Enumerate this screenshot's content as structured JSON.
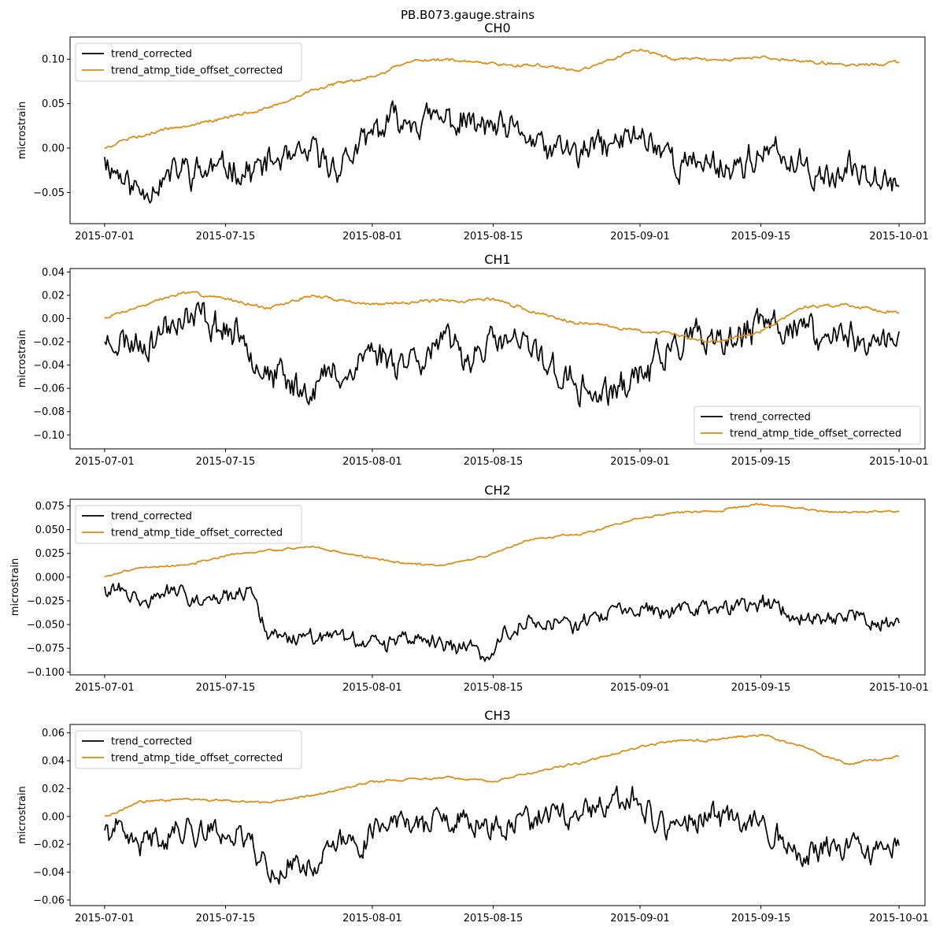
{
  "figure": {
    "title": "PB.B073.gauge.strains"
  },
  "colors": {
    "trend_corrected": "#000000",
    "trend_atmp_tide_offset_corrected": "#e08a0b"
  },
  "chart_data": [
    {
      "type": "line",
      "title": "CH0",
      "ylabel": "microstrain",
      "xlim": [
        "2015-06-27",
        "2015-10-04"
      ],
      "ylim": [
        -0.085,
        0.125
      ],
      "yticks": [
        -0.05,
        0.0,
        0.05,
        0.1
      ],
      "ytick_labels": [
        "−0.05",
        "0.00",
        "0.05",
        "0.10"
      ],
      "xticks": [
        "2015-07-01",
        "2015-07-15",
        "2015-08-01",
        "2015-08-15",
        "2015-09-01",
        "2015-09-15",
        "2015-10-01"
      ],
      "legend": "upper-left",
      "series": [
        {
          "name": "trend_corrected",
          "color": "#000000",
          "seed": 11,
          "amp": 0.024,
          "x": [
            "2015-07-01",
            "2015-07-05",
            "2015-07-10",
            "2015-07-15",
            "2015-07-20",
            "2015-07-25",
            "2015-07-28",
            "2015-08-01",
            "2015-08-06",
            "2015-08-10",
            "2015-08-15",
            "2015-08-20",
            "2015-08-25",
            "2015-09-01",
            "2015-09-05",
            "2015-09-10",
            "2015-09-15",
            "2015-09-20",
            "2015-09-25",
            "2015-10-01"
          ],
          "y": [
            -0.01,
            -0.045,
            -0.02,
            -0.02,
            -0.02,
            -0.01,
            -0.02,
            0.01,
            0.045,
            0.03,
            0.015,
            0.0,
            -0.01,
            0.015,
            -0.015,
            -0.02,
            -0.01,
            -0.02,
            -0.025,
            -0.03
          ]
        },
        {
          "name": "trend_atmp_tide_offset_corrected",
          "color": "#e08a0b",
          "seed": 5,
          "amp": 0.0025,
          "x": [
            "2015-07-01",
            "2015-07-05",
            "2015-07-10",
            "2015-07-15",
            "2015-07-20",
            "2015-07-25",
            "2015-08-01",
            "2015-08-06",
            "2015-08-10",
            "2015-08-15",
            "2015-08-20",
            "2015-08-25",
            "2015-09-01",
            "2015-09-05",
            "2015-09-10",
            "2015-09-15",
            "2015-09-20",
            "2015-09-25",
            "2015-10-01"
          ],
          "y": [
            0.0,
            0.015,
            0.025,
            0.035,
            0.045,
            0.065,
            0.08,
            0.1,
            0.098,
            0.095,
            0.093,
            0.088,
            0.112,
            0.1,
            0.098,
            0.102,
            0.097,
            0.093,
            0.097
          ]
        }
      ]
    },
    {
      "type": "line",
      "title": "CH1",
      "ylabel": "microstrain",
      "xlim": [
        "2015-06-27",
        "2015-10-04"
      ],
      "ylim": [
        -0.112,
        0.043
      ],
      "yticks": [
        -0.1,
        -0.08,
        -0.06,
        -0.04,
        -0.02,
        0.0,
        0.02,
        0.04
      ],
      "ytick_labels": [
        "−0.10",
        "−0.08",
        "−0.06",
        "−0.04",
        "−0.02",
        "0.00",
        "0.02",
        "0.04"
      ],
      "xticks": [
        "2015-07-01",
        "2015-07-15",
        "2015-08-01",
        "2015-08-15",
        "2015-09-01",
        "2015-09-15",
        "2015-10-01"
      ],
      "legend": "lower-right",
      "series": [
        {
          "name": "trend_corrected",
          "color": "#000000",
          "seed": 23,
          "amp": 0.02,
          "x": [
            "2015-07-01",
            "2015-07-05",
            "2015-07-10",
            "2015-07-15",
            "2015-07-20",
            "2015-07-25",
            "2015-08-01",
            "2015-08-05",
            "2015-08-10",
            "2015-08-15",
            "2015-08-20",
            "2015-08-25",
            "2015-08-28",
            "2015-09-01",
            "2015-09-05",
            "2015-09-10",
            "2015-09-15",
            "2015-09-20",
            "2015-09-25",
            "2015-10-01"
          ],
          "y": [
            -0.02,
            -0.02,
            -0.005,
            -0.01,
            -0.04,
            -0.06,
            -0.03,
            -0.03,
            -0.025,
            -0.02,
            -0.03,
            -0.065,
            -0.07,
            -0.04,
            -0.02,
            -0.025,
            -0.01,
            -0.005,
            -0.02,
            -0.02
          ]
        },
        {
          "name": "trend_atmp_tide_offset_corrected",
          "color": "#e08a0b",
          "seed": 7,
          "amp": 0.002,
          "x": [
            "2015-07-01",
            "2015-07-05",
            "2015-07-10",
            "2015-07-15",
            "2015-07-20",
            "2015-07-25",
            "2015-08-01",
            "2015-08-05",
            "2015-08-10",
            "2015-08-15",
            "2015-08-20",
            "2015-08-25",
            "2015-09-01",
            "2015-09-05",
            "2015-09-10",
            "2015-09-15",
            "2015-09-20",
            "2015-09-25",
            "2015-10-01"
          ],
          "y": [
            0.0,
            0.01,
            0.022,
            0.018,
            0.008,
            0.02,
            0.012,
            0.015,
            0.015,
            0.017,
            0.005,
            -0.003,
            -0.01,
            -0.015,
            -0.02,
            -0.01,
            0.01,
            0.012,
            0.005
          ]
        }
      ]
    },
    {
      "type": "line",
      "title": "CH2",
      "ylabel": "microstrain",
      "xlim": [
        "2015-06-27",
        "2015-10-04"
      ],
      "ylim": [
        -0.103,
        0.082
      ],
      "yticks": [
        -0.1,
        -0.075,
        -0.05,
        -0.025,
        0.0,
        0.025,
        0.05,
        0.075
      ],
      "ytick_labels": [
        "−0.100",
        "−0.075",
        "−0.050",
        "−0.025",
        "0.000",
        "0.025",
        "0.050",
        "0.075"
      ],
      "xticks": [
        "2015-07-01",
        "2015-07-15",
        "2015-08-01",
        "2015-08-15",
        "2015-09-01",
        "2015-09-15",
        "2015-10-01"
      ],
      "legend": "upper-left",
      "series": [
        {
          "name": "trend_corrected",
          "color": "#000000",
          "seed": 31,
          "amp": 0.012,
          "x": [
            "2015-07-01",
            "2015-07-05",
            "2015-07-10",
            "2015-07-15",
            "2015-07-18",
            "2015-07-20",
            "2015-07-25",
            "2015-08-01",
            "2015-08-05",
            "2015-08-10",
            "2015-08-14",
            "2015-08-17",
            "2015-08-20",
            "2015-08-25",
            "2015-09-01",
            "2015-09-05",
            "2015-09-10",
            "2015-09-15",
            "2015-09-20",
            "2015-09-25",
            "2015-10-01"
          ],
          "y": [
            -0.01,
            -0.025,
            -0.02,
            -0.02,
            -0.02,
            -0.06,
            -0.06,
            -0.07,
            -0.065,
            -0.07,
            -0.08,
            -0.05,
            -0.045,
            -0.045,
            -0.03,
            -0.035,
            -0.035,
            -0.025,
            -0.04,
            -0.04,
            -0.045
          ]
        },
        {
          "name": "trend_atmp_tide_offset_corrected",
          "color": "#e08a0b",
          "seed": 3,
          "amp": 0.0015,
          "x": [
            "2015-07-01",
            "2015-07-05",
            "2015-07-10",
            "2015-07-15",
            "2015-07-20",
            "2015-07-25",
            "2015-08-01",
            "2015-08-05",
            "2015-08-10",
            "2015-08-15",
            "2015-08-20",
            "2015-08-25",
            "2015-09-01",
            "2015-09-05",
            "2015-09-10",
            "2015-09-15",
            "2015-09-20",
            "2015-09-25",
            "2015-10-01"
          ],
          "y": [
            0.0,
            0.01,
            0.012,
            0.022,
            0.028,
            0.032,
            0.02,
            0.014,
            0.013,
            0.025,
            0.042,
            0.045,
            0.062,
            0.068,
            0.07,
            0.077,
            0.072,
            0.068,
            0.07
          ]
        }
      ]
    },
    {
      "type": "line",
      "title": "CH3",
      "ylabel": "microstrain",
      "xlim": [
        "2015-06-27",
        "2015-10-04"
      ],
      "ylim": [
        -0.064,
        0.066
      ],
      "yticks": [
        -0.06,
        -0.04,
        -0.02,
        0.0,
        0.02,
        0.04,
        0.06
      ],
      "ytick_labels": [
        "−0.06",
        "−0.04",
        "−0.02",
        "0.00",
        "0.02",
        "0.04",
        "0.06"
      ],
      "xticks": [
        "2015-07-01",
        "2015-07-15",
        "2015-08-01",
        "2015-08-15",
        "2015-09-01",
        "2015-09-15",
        "2015-10-01"
      ],
      "legend": "upper-left",
      "series": [
        {
          "name": "trend_corrected",
          "color": "#000000",
          "seed": 41,
          "amp": 0.013,
          "x": [
            "2015-07-01",
            "2015-07-05",
            "2015-07-10",
            "2015-07-15",
            "2015-07-18",
            "2015-07-20",
            "2015-07-25",
            "2015-08-01",
            "2015-08-05",
            "2015-08-10",
            "2015-08-15",
            "2015-08-20",
            "2015-08-25",
            "2015-09-01",
            "2015-09-05",
            "2015-09-10",
            "2015-09-15",
            "2015-09-20",
            "2015-09-25",
            "2015-10-01"
          ],
          "y": [
            -0.01,
            -0.02,
            -0.01,
            -0.01,
            -0.015,
            -0.04,
            -0.035,
            -0.01,
            0.0,
            -0.005,
            -0.01,
            0.0,
            0.0,
            0.01,
            -0.005,
            -0.005,
            0.0,
            -0.025,
            -0.025,
            -0.025
          ]
        },
        {
          "name": "trend_atmp_tide_offset_corrected",
          "color": "#e08a0b",
          "seed": 9,
          "amp": 0.0012,
          "x": [
            "2015-07-01",
            "2015-07-05",
            "2015-07-10",
            "2015-07-15",
            "2015-07-20",
            "2015-07-25",
            "2015-08-01",
            "2015-08-05",
            "2015-08-10",
            "2015-08-15",
            "2015-08-20",
            "2015-08-25",
            "2015-09-01",
            "2015-09-05",
            "2015-09-10",
            "2015-09-15",
            "2015-09-20",
            "2015-09-25",
            "2015-10-01"
          ],
          "y": [
            0.0,
            0.01,
            0.013,
            0.012,
            0.01,
            0.015,
            0.025,
            0.026,
            0.028,
            0.025,
            0.032,
            0.038,
            0.05,
            0.054,
            0.055,
            0.059,
            0.05,
            0.038,
            0.043
          ]
        }
      ]
    }
  ]
}
